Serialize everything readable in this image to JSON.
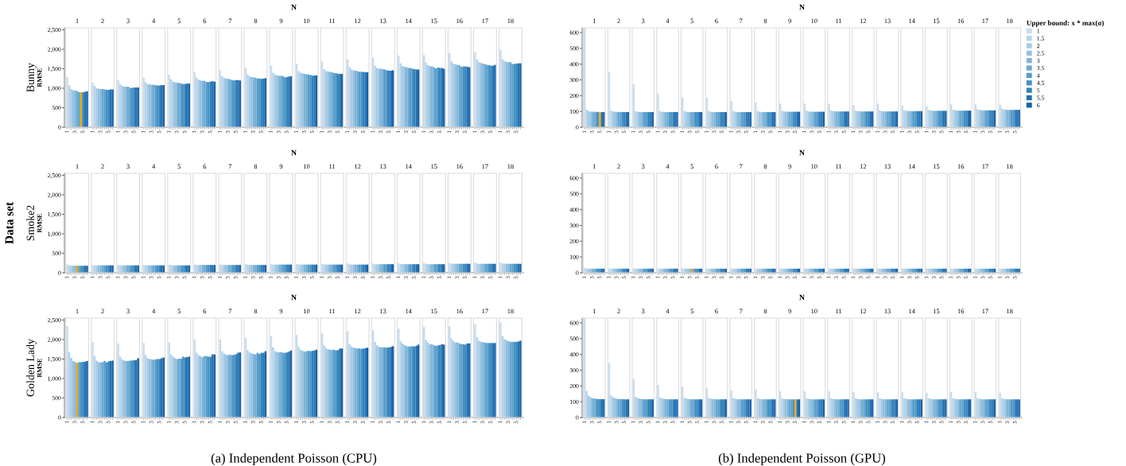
{
  "chart_data": [
    {
      "type": "bar",
      "title": "Bunny",
      "xlabel": "N",
      "ylabel": "RMSE",
      "categories": [
        "1",
        "2",
        "3",
        "4",
        "5",
        "6",
        "7",
        "8",
        "9",
        "10",
        "11",
        "12",
        "13",
        "14",
        "15",
        "16",
        "17",
        "18"
      ],
      "ylim": [
        0,
        2550
      ],
      "yticks": [
        0,
        500,
        {
          "value": 1000,
          "label": "1,000"
        },
        {
          "value": 1500,
          "label": "1,500"
        },
        {
          "value": 2000,
          "label": "2,000"
        },
        {
          "value": 2500,
          "label": "2,500"
        }
      ],
      "series": [
        {
          "color": "#c7dcef",
          "values": [
            1290,
            1140,
            1210,
            1270,
            1350,
            1420,
            1470,
            1530,
            1580,
            1630,
            1680,
            1740,
            1780,
            1840,
            1850,
            1900,
            1930,
            1980
          ]
        },
        {
          "color": "#b7d4ea",
          "values": [
            1080,
            1060,
            1110,
            1160,
            1230,
            1270,
            1310,
            1350,
            1400,
            1440,
            1490,
            1540,
            1580,
            1640,
            1660,
            1690,
            1740,
            1750
          ]
        },
        {
          "color": "#a6cbe4",
          "values": [
            980,
            1000,
            1060,
            1110,
            1170,
            1220,
            1260,
            1300,
            1350,
            1400,
            1440,
            1480,
            1520,
            1570,
            1590,
            1630,
            1670,
            1700
          ]
        },
        {
          "color": "#94c0df",
          "values": [
            950,
            990,
            1040,
            1100,
            1150,
            1200,
            1250,
            1290,
            1330,
            1380,
            1430,
            1460,
            1500,
            1550,
            1570,
            1610,
            1650,
            1680
          ]
        },
        {
          "color": "#80b5d8",
          "values": [
            940,
            980,
            1040,
            1090,
            1140,
            1190,
            1240,
            1280,
            1320,
            1370,
            1420,
            1450,
            1500,
            1540,
            1560,
            1600,
            1630,
            1670
          ]
        },
        {
          "color": "#6aa9d2",
          "values": [
            930,
            980,
            1040,
            1090,
            1140,
            1190,
            1230,
            1270,
            1320,
            1360,
            1410,
            1440,
            1490,
            1520,
            1540,
            1590,
            1620,
            1670
          ]
        },
        {
          "color": "#569dcb",
          "values": [
            900,
            970,
            1010,
            1080,
            1120,
            1160,
            1210,
            1250,
            1310,
            1350,
            1390,
            1420,
            1480,
            1520,
            1510,
            1550,
            1600,
            1620
          ]
        },
        {
          "color": "#4490c4",
          "colors": [
            "#f0a30a",
            null,
            null,
            null,
            null,
            null,
            null,
            null,
            null,
            null,
            null,
            null,
            null,
            null,
            null,
            null,
            null,
            null
          ],
          "values": [
            900,
            960,
            1010,
            1070,
            1110,
            1160,
            1200,
            1250,
            1280,
            1340,
            1390,
            1420,
            1460,
            1500,
            1530,
            1560,
            1590,
            1630
          ]
        },
        {
          "color": "#3281bb",
          "values": [
            900,
            960,
            1020,
            1070,
            1110,
            1170,
            1210,
            1240,
            1290,
            1320,
            1370,
            1420,
            1450,
            1490,
            1520,
            1560,
            1580,
            1630
          ]
        },
        {
          "color": "#2271b3",
          "values": [
            910,
            970,
            1020,
            1080,
            1120,
            1180,
            1210,
            1250,
            1300,
            1330,
            1370,
            1410,
            1450,
            1480,
            1520,
            1550,
            1580,
            1640
          ]
        },
        {
          "color": "#1562a9",
          "values": [
            920,
            970,
            1020,
            1080,
            1120,
            1170,
            1200,
            1260,
            1310,
            1330,
            1370,
            1410,
            1460,
            1480,
            1500,
            1540,
            1600,
            1640
          ]
        }
      ]
    },
    {
      "type": "bar",
      "xlabel": "N",
      "legend": "right",
      "legend_title": "Upper bound: x * max(σ)",
      "categories": [
        "1",
        "2",
        "3",
        "4",
        "5",
        "6",
        "7",
        "8",
        "9",
        "10",
        "11",
        "12",
        "13",
        "14",
        "15",
        "16",
        "17",
        "18"
      ],
      "ylim": [
        0,
        630
      ],
      "yticks": [
        0,
        100,
        200,
        300,
        400,
        500,
        600
      ],
      "series": [
        {
          "name": "1",
          "color": "#c7dcef",
          "values": [
            630,
            350,
            274,
            212,
            188,
            188,
            167,
            157,
            150,
            150,
            150,
            138,
            150,
            138,
            133,
            145,
            145,
            143
          ]
        },
        {
          "name": "1.5",
          "color": "#b7d4ea",
          "values": [
            112,
            105,
            103,
            103,
            103,
            103,
            103,
            103,
            105,
            105,
            107,
            107,
            107,
            108,
            110,
            112,
            115,
            118
          ]
        },
        {
          "name": "2",
          "color": "#a6cbe4",
          "values": [
            102,
            100,
            98,
            98,
            98,
            98,
            98,
            98,
            100,
            100,
            102,
            102,
            102,
            104,
            106,
            107,
            110,
            112
          ]
        },
        {
          "name": "2.5",
          "color": "#94c0df",
          "values": [
            99,
            98,
            97,
            97,
            97,
            97,
            97,
            97,
            99,
            99,
            101,
            101,
            101,
            103,
            105,
            106,
            108,
            111
          ]
        },
        {
          "name": "3",
          "color": "#80b5d8",
          "values": [
            98,
            97,
            96,
            96,
            96,
            96,
            96,
            96,
            98,
            98,
            100,
            100,
            100,
            102,
            104,
            105,
            107,
            110
          ]
        },
        {
          "name": "3.5",
          "color": "#6aa9d2",
          "values": [
            98,
            97,
            96,
            96,
            96,
            96,
            96,
            96,
            98,
            98,
            100,
            100,
            100,
            102,
            104,
            105,
            107,
            110
          ]
        },
        {
          "name": "4",
          "color": "#569dcb",
          "values": [
            97,
            97,
            96,
            96,
            96,
            96,
            96,
            96,
            98,
            98,
            100,
            100,
            100,
            102,
            104,
            105,
            107,
            110
          ]
        },
        {
          "name": "4.5",
          "color": "#4490c4",
          "values": [
            97,
            96,
            96,
            96,
            96,
            96,
            96,
            96,
            98,
            98,
            100,
            100,
            100,
            102,
            104,
            105,
            107,
            110
          ]
        },
        {
          "name": "5",
          "color": "#3281bb",
          "colors": [
            "#f0a30a",
            null,
            null,
            null,
            null,
            null,
            null,
            null,
            null,
            null,
            null,
            null,
            null,
            null,
            null,
            null,
            null,
            null
          ],
          "values": [
            96,
            96,
            96,
            96,
            96,
            96,
            96,
            96,
            98,
            98,
            100,
            100,
            100,
            102,
            104,
            105,
            107,
            110
          ]
        },
        {
          "name": "5.5",
          "color": "#2271b3",
          "values": [
            96,
            96,
            96,
            96,
            96,
            96,
            96,
            96,
            98,
            98,
            100,
            100,
            100,
            102,
            104,
            105,
            107,
            110
          ]
        },
        {
          "name": "6",
          "color": "#1562a9",
          "values": [
            96,
            96,
            96,
            96,
            96,
            96,
            96,
            96,
            98,
            98,
            100,
            100,
            100,
            102,
            104,
            105,
            107,
            110
          ]
        }
      ]
    },
    {
      "type": "bar",
      "title": "Smoke2",
      "xlabel": "N",
      "ylabel": "RMSE",
      "annotations": [
        "Data set"
      ],
      "categories": [
        "1",
        "2",
        "3",
        "4",
        "5",
        "6",
        "7",
        "8",
        "9",
        "10",
        "11",
        "12",
        "13",
        "14",
        "15",
        "16",
        "17",
        "18"
      ],
      "ylim": [
        0,
        2550
      ],
      "yticks": [
        0,
        500,
        {
          "value": 1000,
          "label": "1,000"
        },
        {
          "value": 1500,
          "label": "1,500"
        },
        {
          "value": 2000,
          "label": "2,000"
        },
        {
          "value": 2500,
          "label": "2,500"
        }
      ],
      "series": [
        {
          "color": "#c7dcef",
          "values": [
            220,
            200,
            200,
            200,
            210,
            210,
            220,
            220,
            230,
            230,
            230,
            240,
            240,
            240,
            250,
            250,
            260,
            260
          ]
        },
        {
          "color": "#b7d4ea",
          "values": [
            190,
            190,
            190,
            190,
            200,
            200,
            200,
            210,
            210,
            210,
            220,
            220,
            220,
            230,
            230,
            230,
            240,
            240
          ]
        },
        {
          "color": "#a6cbe4",
          "values": [
            180,
            190,
            190,
            190,
            190,
            200,
            200,
            200,
            210,
            210,
            210,
            210,
            220,
            220,
            220,
            230,
            230,
            230
          ]
        },
        {
          "color": "#94c0df",
          "values": [
            180,
            190,
            190,
            190,
            190,
            200,
            200,
            200,
            210,
            210,
            210,
            210,
            220,
            220,
            220,
            230,
            230,
            230
          ]
        },
        {
          "color": "#80b5d8",
          "values": [
            180,
            190,
            190,
            190,
            190,
            200,
            200,
            200,
            210,
            210,
            210,
            210,
            220,
            220,
            220,
            230,
            230,
            230
          ]
        },
        {
          "color": "#6aa9d2",
          "colors": [
            "#f0a30a",
            null,
            null,
            null,
            null,
            null,
            null,
            null,
            null,
            null,
            null,
            null,
            null,
            null,
            null,
            null,
            null,
            null
          ],
          "values": [
            180,
            190,
            190,
            190,
            190,
            200,
            200,
            200,
            210,
            210,
            210,
            210,
            220,
            220,
            220,
            230,
            230,
            230
          ]
        },
        {
          "color": "#569dcb",
          "values": [
            180,
            190,
            190,
            190,
            190,
            200,
            200,
            200,
            210,
            210,
            210,
            210,
            220,
            220,
            220,
            230,
            230,
            230
          ]
        },
        {
          "color": "#4490c4",
          "values": [
            180,
            190,
            190,
            190,
            190,
            200,
            200,
            200,
            210,
            210,
            210,
            210,
            220,
            220,
            220,
            230,
            230,
            230
          ]
        },
        {
          "color": "#3281bb",
          "values": [
            180,
            190,
            190,
            190,
            190,
            200,
            200,
            200,
            210,
            210,
            210,
            210,
            220,
            220,
            220,
            230,
            230,
            230
          ]
        },
        {
          "color": "#2271b3",
          "values": [
            180,
            190,
            190,
            190,
            190,
            200,
            200,
            200,
            210,
            210,
            210,
            210,
            220,
            220,
            220,
            230,
            230,
            230
          ]
        },
        {
          "color": "#1562a9",
          "values": [
            180,
            190,
            190,
            190,
            190,
            200,
            200,
            200,
            210,
            210,
            210,
            210,
            220,
            220,
            220,
            230,
            230,
            230
          ]
        }
      ]
    },
    {
      "type": "bar",
      "xlabel": "N",
      "categories": [
        "1",
        "2",
        "3",
        "4",
        "5",
        "6",
        "7",
        "8",
        "9",
        "10",
        "11",
        "12",
        "13",
        "14",
        "15",
        "16",
        "17",
        "18"
      ],
      "ylim": [
        0,
        630
      ],
      "yticks": [
        0,
        100,
        200,
        300,
        400,
        500,
        600
      ],
      "series": [
        {
          "color": "#c7dcef",
          "values": [
            32,
            28,
            28,
            28,
            28,
            28,
            28,
            28,
            28,
            28,
            28,
            28,
            28,
            28,
            28,
            28,
            28,
            28
          ]
        },
        {
          "color": "#b7d4ea",
          "values": [
            27,
            26,
            26,
            26,
            26,
            26,
            26,
            26,
            26,
            26,
            26,
            26,
            26,
            26,
            26,
            26,
            26,
            26
          ]
        },
        {
          "color": "#a6cbe4",
          "values": [
            26,
            26,
            26,
            26,
            26,
            26,
            26,
            26,
            26,
            26,
            26,
            26,
            26,
            26,
            26,
            26,
            26,
            26
          ]
        },
        {
          "color": "#94c0df",
          "values": [
            26,
            26,
            26,
            26,
            26,
            26,
            26,
            26,
            26,
            26,
            26,
            26,
            26,
            26,
            26,
            26,
            26,
            26
          ]
        },
        {
          "color": "#80b5d8",
          "values": [
            26,
            26,
            26,
            26,
            26,
            26,
            26,
            26,
            26,
            26,
            26,
            26,
            26,
            26,
            26,
            26,
            26,
            26
          ]
        },
        {
          "color": "#6aa9d2",
          "colors": [
            null,
            null,
            null,
            null,
            "#f0a30a",
            null,
            null,
            null,
            null,
            null,
            null,
            null,
            null,
            null,
            null,
            null,
            null,
            null
          ],
          "values": [
            26,
            26,
            26,
            26,
            26,
            26,
            26,
            26,
            26,
            26,
            26,
            26,
            26,
            26,
            26,
            26,
            26,
            26
          ]
        },
        {
          "color": "#569dcb",
          "values": [
            26,
            26,
            26,
            26,
            26,
            26,
            26,
            26,
            26,
            26,
            26,
            26,
            26,
            26,
            26,
            26,
            26,
            26
          ]
        },
        {
          "color": "#4490c4",
          "values": [
            26,
            26,
            26,
            26,
            26,
            26,
            26,
            26,
            26,
            26,
            26,
            26,
            26,
            26,
            26,
            26,
            26,
            26
          ]
        },
        {
          "color": "#3281bb",
          "values": [
            26,
            26,
            26,
            26,
            26,
            26,
            26,
            26,
            26,
            26,
            26,
            26,
            26,
            26,
            26,
            26,
            26,
            26
          ]
        },
        {
          "color": "#2271b3",
          "values": [
            26,
            26,
            26,
            26,
            26,
            26,
            26,
            26,
            26,
            26,
            26,
            26,
            26,
            26,
            26,
            26,
            26,
            26
          ]
        },
        {
          "color": "#1562a9",
          "values": [
            26,
            26,
            26,
            26,
            26,
            26,
            26,
            26,
            26,
            26,
            26,
            26,
            26,
            26,
            26,
            26,
            26,
            26
          ]
        }
      ]
    },
    {
      "type": "bar",
      "title": "Golden Lady",
      "xlabel": "N",
      "ylabel": "RMSE",
      "annotations": [
        "(a) Independent Poisson (CPU)"
      ],
      "categories": [
        "1",
        "2",
        "3",
        "4",
        "5",
        "6",
        "7",
        "8",
        "9",
        "10",
        "11",
        "12",
        "13",
        "14",
        "15",
        "16",
        "17",
        "18"
      ],
      "ylim": [
        0,
        2550
      ],
      "yticks": [
        0,
        500,
        {
          "value": 1000,
          "label": "1,000"
        },
        {
          "value": 1500,
          "label": "1,500"
        },
        {
          "value": 2000,
          "label": "2,000"
        },
        {
          "value": 2500,
          "label": "2,500"
        }
      ],
      "series": [
        {
          "color": "#c7dcef",
          "values": [
            2340,
            1940,
            1900,
            1910,
            1930,
            2000,
            2000,
            2040,
            2090,
            2120,
            2160,
            2210,
            2240,
            2280,
            2320,
            2340,
            2390,
            2440
          ]
        },
        {
          "color": "#b7d4ea",
          "values": [
            1680,
            1570,
            1560,
            1600,
            1620,
            1660,
            1700,
            1730,
            1800,
            1820,
            1850,
            1880,
            1940,
            1960,
            1990,
            2030,
            2060,
            2090
          ]
        },
        {
          "color": "#a6cbe4",
          "values": [
            1530,
            1460,
            1490,
            1520,
            1560,
            1600,
            1640,
            1670,
            1700,
            1740,
            1780,
            1820,
            1850,
            1900,
            1920,
            1960,
            1970,
            2010
          ]
        },
        {
          "color": "#94c0df",
          "values": [
            1450,
            1420,
            1460,
            1500,
            1520,
            1570,
            1610,
            1640,
            1680,
            1710,
            1750,
            1790,
            1810,
            1860,
            1880,
            1920,
            1940,
            1980
          ]
        },
        {
          "color": "#80b5d8",
          "values": [
            1420,
            1410,
            1450,
            1490,
            1500,
            1550,
            1600,
            1630,
            1670,
            1690,
            1740,
            1780,
            1800,
            1830,
            1880,
            1920,
            1930,
            1960
          ]
        },
        {
          "color": "#6aa9d2",
          "colors": [
            "#f0a30a",
            null,
            null,
            null,
            null,
            null,
            null,
            null,
            null,
            null,
            null,
            null,
            null,
            null,
            null,
            null,
            null,
            null
          ],
          "values": [
            1400,
            1420,
            1450,
            1480,
            1510,
            1580,
            1610,
            1620,
            1680,
            1700,
            1730,
            1770,
            1800,
            1820,
            1850,
            1900,
            1920,
            1940
          ]
        },
        {
          "color": "#569dcb",
          "values": [
            1420,
            1450,
            1460,
            1490,
            1510,
            1570,
            1600,
            1660,
            1660,
            1710,
            1740,
            1770,
            1800,
            1820,
            1840,
            1880,
            1910,
            1940
          ]
        },
        {
          "color": "#4490c4",
          "values": [
            1420,
            1410,
            1460,
            1500,
            1560,
            1560,
            1610,
            1630,
            1660,
            1700,
            1720,
            1760,
            1790,
            1830,
            1850,
            1880,
            1910,
            1940
          ]
        },
        {
          "color": "#3281bb",
          "values": [
            1430,
            1440,
            1470,
            1500,
            1540,
            1560,
            1620,
            1660,
            1670,
            1710,
            1730,
            1770,
            1800,
            1820,
            1860,
            1870,
            1910,
            1940
          ]
        },
        {
          "color": "#2271b3",
          "values": [
            1430,
            1450,
            1470,
            1520,
            1550,
            1620,
            1660,
            1660,
            1690,
            1720,
            1770,
            1780,
            1810,
            1840,
            1880,
            1900,
            1910,
            1950
          ]
        },
        {
          "color": "#1562a9",
          "values": [
            1450,
            1460,
            1520,
            1540,
            1560,
            1620,
            1670,
            1700,
            1720,
            1740,
            1770,
            1790,
            1830,
            1870,
            1870,
            1900,
            1910,
            1970
          ]
        }
      ]
    },
    {
      "type": "bar",
      "xlabel": "N",
      "annotations": [
        "(b) Independent Poisson (GPU)"
      ],
      "categories": [
        "1",
        "2",
        "3",
        "4",
        "5",
        "6",
        "7",
        "8",
        "9",
        "10",
        "11",
        "12",
        "13",
        "14",
        "15",
        "16",
        "17",
        "18"
      ],
      "ylim": [
        0,
        630
      ],
      "yticks": [
        0,
        100,
        200,
        300,
        400,
        500,
        600
      ],
      "series": [
        {
          "color": "#c7dcef",
          "values": [
            630,
            346,
            246,
            207,
            193,
            185,
            171,
            178,
            166,
            166,
            166,
            161,
            161,
            161,
            156,
            161,
            161,
            158
          ]
        },
        {
          "color": "#b7d4ea",
          "values": [
            168,
            140,
            132,
            127,
            125,
            124,
            124,
            122,
            122,
            122,
            122,
            122,
            122,
            122,
            122,
            122,
            122,
            122
          ]
        },
        {
          "color": "#a6cbe4",
          "values": [
            138,
            128,
            124,
            121,
            120,
            119,
            119,
            118,
            118,
            118,
            118,
            118,
            118,
            118,
            118,
            118,
            118,
            118
          ]
        },
        {
          "color": "#94c0df",
          "values": [
            128,
            122,
            120,
            118,
            117,
            117,
            116,
            116,
            116,
            116,
            116,
            116,
            116,
            116,
            116,
            116,
            116,
            116
          ]
        },
        {
          "color": "#80b5d8",
          "values": [
            122,
            118,
            117,
            116,
            116,
            116,
            115,
            115,
            115,
            115,
            115,
            115,
            115,
            115,
            115,
            115,
            115,
            115
          ]
        },
        {
          "color": "#6aa9d2",
          "values": [
            120,
            117,
            116,
            115,
            115,
            115,
            115,
            115,
            115,
            115,
            115,
            115,
            115,
            115,
            115,
            115,
            115,
            115
          ]
        },
        {
          "color": "#569dcb",
          "values": [
            118,
            116,
            115,
            115,
            115,
            115,
            115,
            115,
            115,
            115,
            115,
            115,
            115,
            115,
            115,
            115,
            115,
            115
          ]
        },
        {
          "color": "#4490c4",
          "values": [
            117,
            116,
            115,
            115,
            115,
            115,
            115,
            115,
            115,
            115,
            115,
            115,
            115,
            115,
            115,
            115,
            115,
            115
          ]
        },
        {
          "color": "#3281bb",
          "colors": [
            null,
            null,
            null,
            null,
            null,
            null,
            null,
            null,
            "#f0a30a",
            null,
            null,
            null,
            null,
            null,
            null,
            null,
            null,
            null
          ],
          "values": [
            116,
            115,
            115,
            115,
            115,
            115,
            115,
            115,
            115,
            115,
            115,
            115,
            115,
            115,
            115,
            115,
            115,
            115
          ]
        },
        {
          "color": "#2271b3",
          "values": [
            116,
            115,
            115,
            115,
            115,
            115,
            115,
            115,
            115,
            115,
            115,
            115,
            115,
            115,
            115,
            115,
            115,
            115
          ]
        },
        {
          "color": "#1562a9",
          "values": [
            116,
            115,
            115,
            115,
            115,
            115,
            115,
            115,
            115,
            115,
            115,
            115,
            115,
            115,
            115,
            115,
            115,
            115
          ]
        }
      ]
    }
  ]
}
